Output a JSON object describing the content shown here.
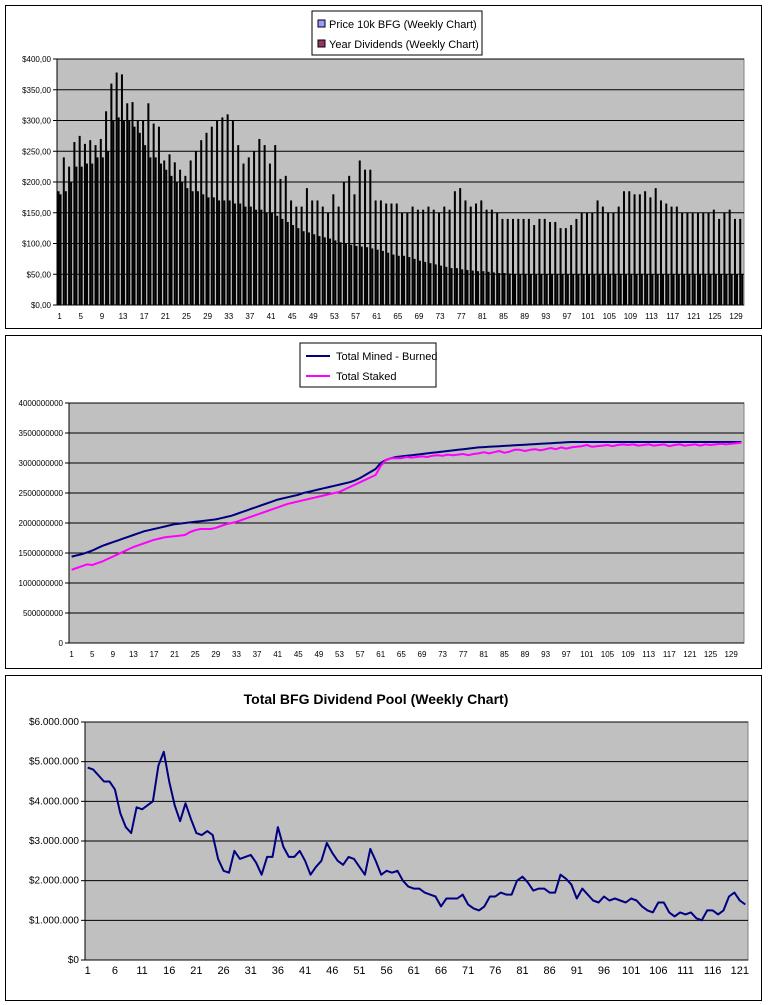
{
  "chart_data": [
    {
      "type": "bar",
      "title": "",
      "xlabel": "",
      "ylabel": "",
      "ylim": [
        0,
        400
      ],
      "ytick_labels": [
        "$0,00",
        "$50,00",
        "$100,00",
        "$150,00",
        "$200,00",
        "$250,00",
        "$300,00",
        "$350,00",
        "$400,00"
      ],
      "x_tick_labels": [
        "1",
        "5",
        "9",
        "13",
        "17",
        "21",
        "25",
        "29",
        "33",
        "37",
        "41",
        "45",
        "49",
        "53",
        "57",
        "61",
        "65",
        "69",
        "73",
        "77",
        "81",
        "85",
        "89",
        "93",
        "97",
        "101",
        "105",
        "109",
        "113",
        "117",
        "121",
        "125",
        "129"
      ],
      "grid": true,
      "legend_position": "top-center",
      "plot_background": "#C0C0C0",
      "series": [
        {
          "name": "Price 10k BFG (Weekly Chart)",
          "color": "#9999FF",
          "values": [
            185,
            240,
            225,
            265,
            275,
            262,
            268,
            260,
            270,
            315,
            360,
            378,
            375,
            328,
            330,
            300,
            300,
            328,
            295,
            290,
            235,
            245,
            232,
            220,
            210,
            235,
            250,
            268,
            280,
            290,
            300,
            305,
            310,
            300,
            260,
            230,
            240,
            250,
            270,
            260,
            230,
            260,
            205,
            210,
            170,
            160,
            160,
            190,
            170,
            170,
            160,
            150,
            180,
            160,
            200,
            210,
            180,
            235,
            220,
            220,
            170,
            170,
            165,
            165,
            165,
            150,
            150,
            160,
            155,
            155,
            160,
            155,
            150,
            160,
            155,
            185,
            190,
            170,
            160,
            165,
            170,
            155,
            155,
            150,
            140,
            140,
            140,
            140,
            140,
            140,
            130,
            140,
            140,
            135,
            135,
            125,
            125,
            130,
            140,
            150,
            150,
            150,
            170,
            160,
            150,
            150,
            160,
            185,
            185,
            180,
            180,
            185,
            175,
            190,
            170,
            165,
            160,
            160,
            150,
            150,
            150,
            150,
            150,
            150,
            155,
            140,
            150,
            155,
            140,
            140
          ]
        },
        {
          "name": "Year Dividends (Weekly Chart)",
          "color": "#993366",
          "values": [
            180,
            185,
            200,
            225,
            225,
            230,
            230,
            240,
            240,
            250,
            300,
            305,
            300,
            300,
            290,
            280,
            260,
            240,
            240,
            230,
            220,
            210,
            200,
            200,
            190,
            185,
            185,
            180,
            175,
            175,
            170,
            170,
            170,
            165,
            165,
            160,
            160,
            155,
            155,
            150,
            150,
            145,
            140,
            135,
            130,
            125,
            120,
            118,
            115,
            112,
            110,
            108,
            105,
            102,
            100,
            98,
            96,
            95,
            94,
            92,
            90,
            88,
            85,
            82,
            80,
            80,
            78,
            75,
            72,
            70,
            68,
            66,
            64,
            62,
            60,
            60,
            58,
            57,
            56,
            55,
            55,
            54,
            53,
            52,
            52,
            51,
            50,
            50,
            50,
            50,
            50,
            50,
            50,
            50,
            50,
            50,
            50,
            50,
            50,
            50,
            50,
            50,
            50,
            50,
            50,
            50,
            50,
            50,
            50,
            50,
            50,
            50,
            50,
            50,
            50,
            50,
            50,
            50,
            50,
            50,
            50,
            50,
            50,
            50,
            50,
            50,
            50,
            50,
            50,
            50
          ]
        }
      ]
    },
    {
      "type": "line",
      "title": "",
      "xlabel": "",
      "ylabel": "",
      "ylim": [
        0,
        4000000000
      ],
      "ytick_labels": [
        "0",
        "500000000",
        "1000000000",
        "1500000000",
        "2000000000",
        "2500000000",
        "3000000000",
        "3500000000",
        "4000000000"
      ],
      "x_tick_labels": [
        "1",
        "5",
        "9",
        "13",
        "17",
        "21",
        "25",
        "29",
        "33",
        "37",
        "41",
        "45",
        "49",
        "53",
        "57",
        "61",
        "65",
        "69",
        "73",
        "77",
        "81",
        "85",
        "89",
        "93",
        "97",
        "101",
        "105",
        "109",
        "113",
        "117",
        "121",
        "125",
        "129"
      ],
      "grid": true,
      "legend_position": "top-center",
      "plot_background": "#C0C0C0",
      "series": [
        {
          "name": "Total Mined - Burned",
          "color": "#000080",
          "values": [
            1440000000,
            1460000000,
            1480000000,
            1510000000,
            1540000000,
            1580000000,
            1620000000,
            1650000000,
            1680000000,
            1710000000,
            1740000000,
            1770000000,
            1800000000,
            1830000000,
            1860000000,
            1880000000,
            1900000000,
            1920000000,
            1940000000,
            1960000000,
            1980000000,
            1990000000,
            2000000000,
            2010000000,
            2020000000,
            2030000000,
            2040000000,
            2050000000,
            2060000000,
            2080000000,
            2100000000,
            2120000000,
            2150000000,
            2180000000,
            2210000000,
            2240000000,
            2270000000,
            2300000000,
            2330000000,
            2360000000,
            2390000000,
            2410000000,
            2430000000,
            2450000000,
            2470000000,
            2500000000,
            2520000000,
            2540000000,
            2560000000,
            2580000000,
            2600000000,
            2620000000,
            2640000000,
            2660000000,
            2680000000,
            2710000000,
            2750000000,
            2800000000,
            2850000000,
            2900000000,
            3000000000,
            3050000000,
            3080000000,
            3100000000,
            3110000000,
            3120000000,
            3130000000,
            3140000000,
            3150000000,
            3160000000,
            3170000000,
            3180000000,
            3190000000,
            3200000000,
            3210000000,
            3220000000,
            3230000000,
            3240000000,
            3250000000,
            3260000000,
            3265000000,
            3270000000,
            3275000000,
            3280000000,
            3285000000,
            3290000000,
            3295000000,
            3300000000,
            3305000000,
            3310000000,
            3315000000,
            3320000000,
            3325000000,
            3330000000,
            3335000000,
            3340000000,
            3345000000,
            3350000000,
            3350000000,
            3350000000,
            3350000000,
            3350000000,
            3350000000,
            3350000000,
            3350000000,
            3350000000,
            3350000000,
            3350000000,
            3350000000,
            3350000000,
            3350000000,
            3350000000,
            3350000000,
            3350000000,
            3350000000,
            3350000000,
            3350000000,
            3350000000,
            3350000000,
            3350000000,
            3350000000,
            3350000000,
            3350000000,
            3350000000,
            3350000000,
            3350000000,
            3350000000,
            3350000000,
            3350000000,
            3350000000,
            3350000000
          ]
        },
        {
          "name": "Total Staked",
          "color": "#FF00FF",
          "values": [
            1220000000,
            1250000000,
            1280000000,
            1310000000,
            1300000000,
            1330000000,
            1360000000,
            1400000000,
            1440000000,
            1480000000,
            1520000000,
            1560000000,
            1600000000,
            1630000000,
            1660000000,
            1690000000,
            1720000000,
            1740000000,
            1760000000,
            1770000000,
            1780000000,
            1790000000,
            1800000000,
            1850000000,
            1880000000,
            1900000000,
            1900000000,
            1900000000,
            1920000000,
            1950000000,
            1980000000,
            2000000000,
            2020000000,
            2050000000,
            2080000000,
            2110000000,
            2140000000,
            2170000000,
            2200000000,
            2230000000,
            2260000000,
            2290000000,
            2320000000,
            2340000000,
            2360000000,
            2380000000,
            2400000000,
            2420000000,
            2440000000,
            2460000000,
            2480000000,
            2500000000,
            2520000000,
            2560000000,
            2600000000,
            2640000000,
            2680000000,
            2720000000,
            2760000000,
            2800000000,
            2950000000,
            3050000000,
            3080000000,
            3080000000,
            3080000000,
            3100000000,
            3090000000,
            3100000000,
            3110000000,
            3100000000,
            3120000000,
            3130000000,
            3120000000,
            3140000000,
            3130000000,
            3140000000,
            3150000000,
            3130000000,
            3150000000,
            3160000000,
            3180000000,
            3160000000,
            3180000000,
            3200000000,
            3170000000,
            3190000000,
            3220000000,
            3220000000,
            3200000000,
            3220000000,
            3230000000,
            3210000000,
            3230000000,
            3250000000,
            3230000000,
            3260000000,
            3240000000,
            3260000000,
            3270000000,
            3280000000,
            3300000000,
            3270000000,
            3280000000,
            3290000000,
            3300000000,
            3280000000,
            3300000000,
            3310000000,
            3300000000,
            3310000000,
            3290000000,
            3300000000,
            3310000000,
            3290000000,
            3300000000,
            3310000000,
            3280000000,
            3300000000,
            3310000000,
            3290000000,
            3300000000,
            3310000000,
            3290000000,
            3310000000,
            3300000000,
            3310000000,
            3320000000,
            3310000000,
            3320000000,
            3330000000,
            3340000000
          ]
        }
      ]
    },
    {
      "type": "line",
      "title": "Total BFG Dividend Pool (Weekly Chart)",
      "xlabel": "",
      "ylabel": "",
      "ylim": [
        0,
        6000000
      ],
      "ytick_labels": [
        "$0",
        "$1.000.000",
        "$2.000.000",
        "$3.000.000",
        "$4.000.000",
        "$5.000.000",
        "$6.000.000"
      ],
      "x_tick_labels": [
        "1",
        "6",
        "11",
        "16",
        "21",
        "26",
        "31",
        "36",
        "41",
        "46",
        "51",
        "56",
        "61",
        "66",
        "71",
        "76",
        "81",
        "86",
        "91",
        "96",
        "101",
        "106",
        "111",
        "116",
        "121"
      ],
      "grid": true,
      "legend_position": "none",
      "plot_background": "#C0C0C0",
      "series": [
        {
          "color": "#000080",
          "values": [
            4850000,
            4800000,
            4650000,
            4500000,
            4500000,
            4300000,
            3700000,
            3350000,
            3200000,
            3850000,
            3800000,
            3900000,
            4000000,
            4900000,
            5250000,
            4500000,
            3900000,
            3500000,
            3950000,
            3550000,
            3200000,
            3150000,
            3250000,
            3150000,
            2550000,
            2250000,
            2200000,
            2750000,
            2550000,
            2600000,
            2650000,
            2450000,
            2150000,
            2600000,
            2600000,
            3350000,
            2850000,
            2600000,
            2600000,
            2750000,
            2500000,
            2150000,
            2350000,
            2500000,
            2950000,
            2700000,
            2500000,
            2400000,
            2600000,
            2550000,
            2350000,
            2150000,
            2800000,
            2500000,
            2150000,
            2250000,
            2200000,
            2250000,
            2000000,
            1850000,
            1800000,
            1800000,
            1700000,
            1650000,
            1600000,
            1350000,
            1550000,
            1550000,
            1550000,
            1650000,
            1400000,
            1300000,
            1250000,
            1350000,
            1600000,
            1600000,
            1700000,
            1650000,
            1650000,
            2000000,
            2100000,
            1950000,
            1750000,
            1800000,
            1800000,
            1700000,
            1700000,
            2150000,
            2050000,
            1900000,
            1550000,
            1800000,
            1650000,
            1500000,
            1450000,
            1600000,
            1500000,
            1550000,
            1500000,
            1450000,
            1550000,
            1500000,
            1350000,
            1250000,
            1200000,
            1450000,
            1450000,
            1200000,
            1100000,
            1200000,
            1150000,
            1200000,
            1050000,
            1000000,
            1250000,
            1250000,
            1150000,
            1250000,
            1600000,
            1700000,
            1500000,
            1400000
          ]
        }
      ]
    }
  ]
}
